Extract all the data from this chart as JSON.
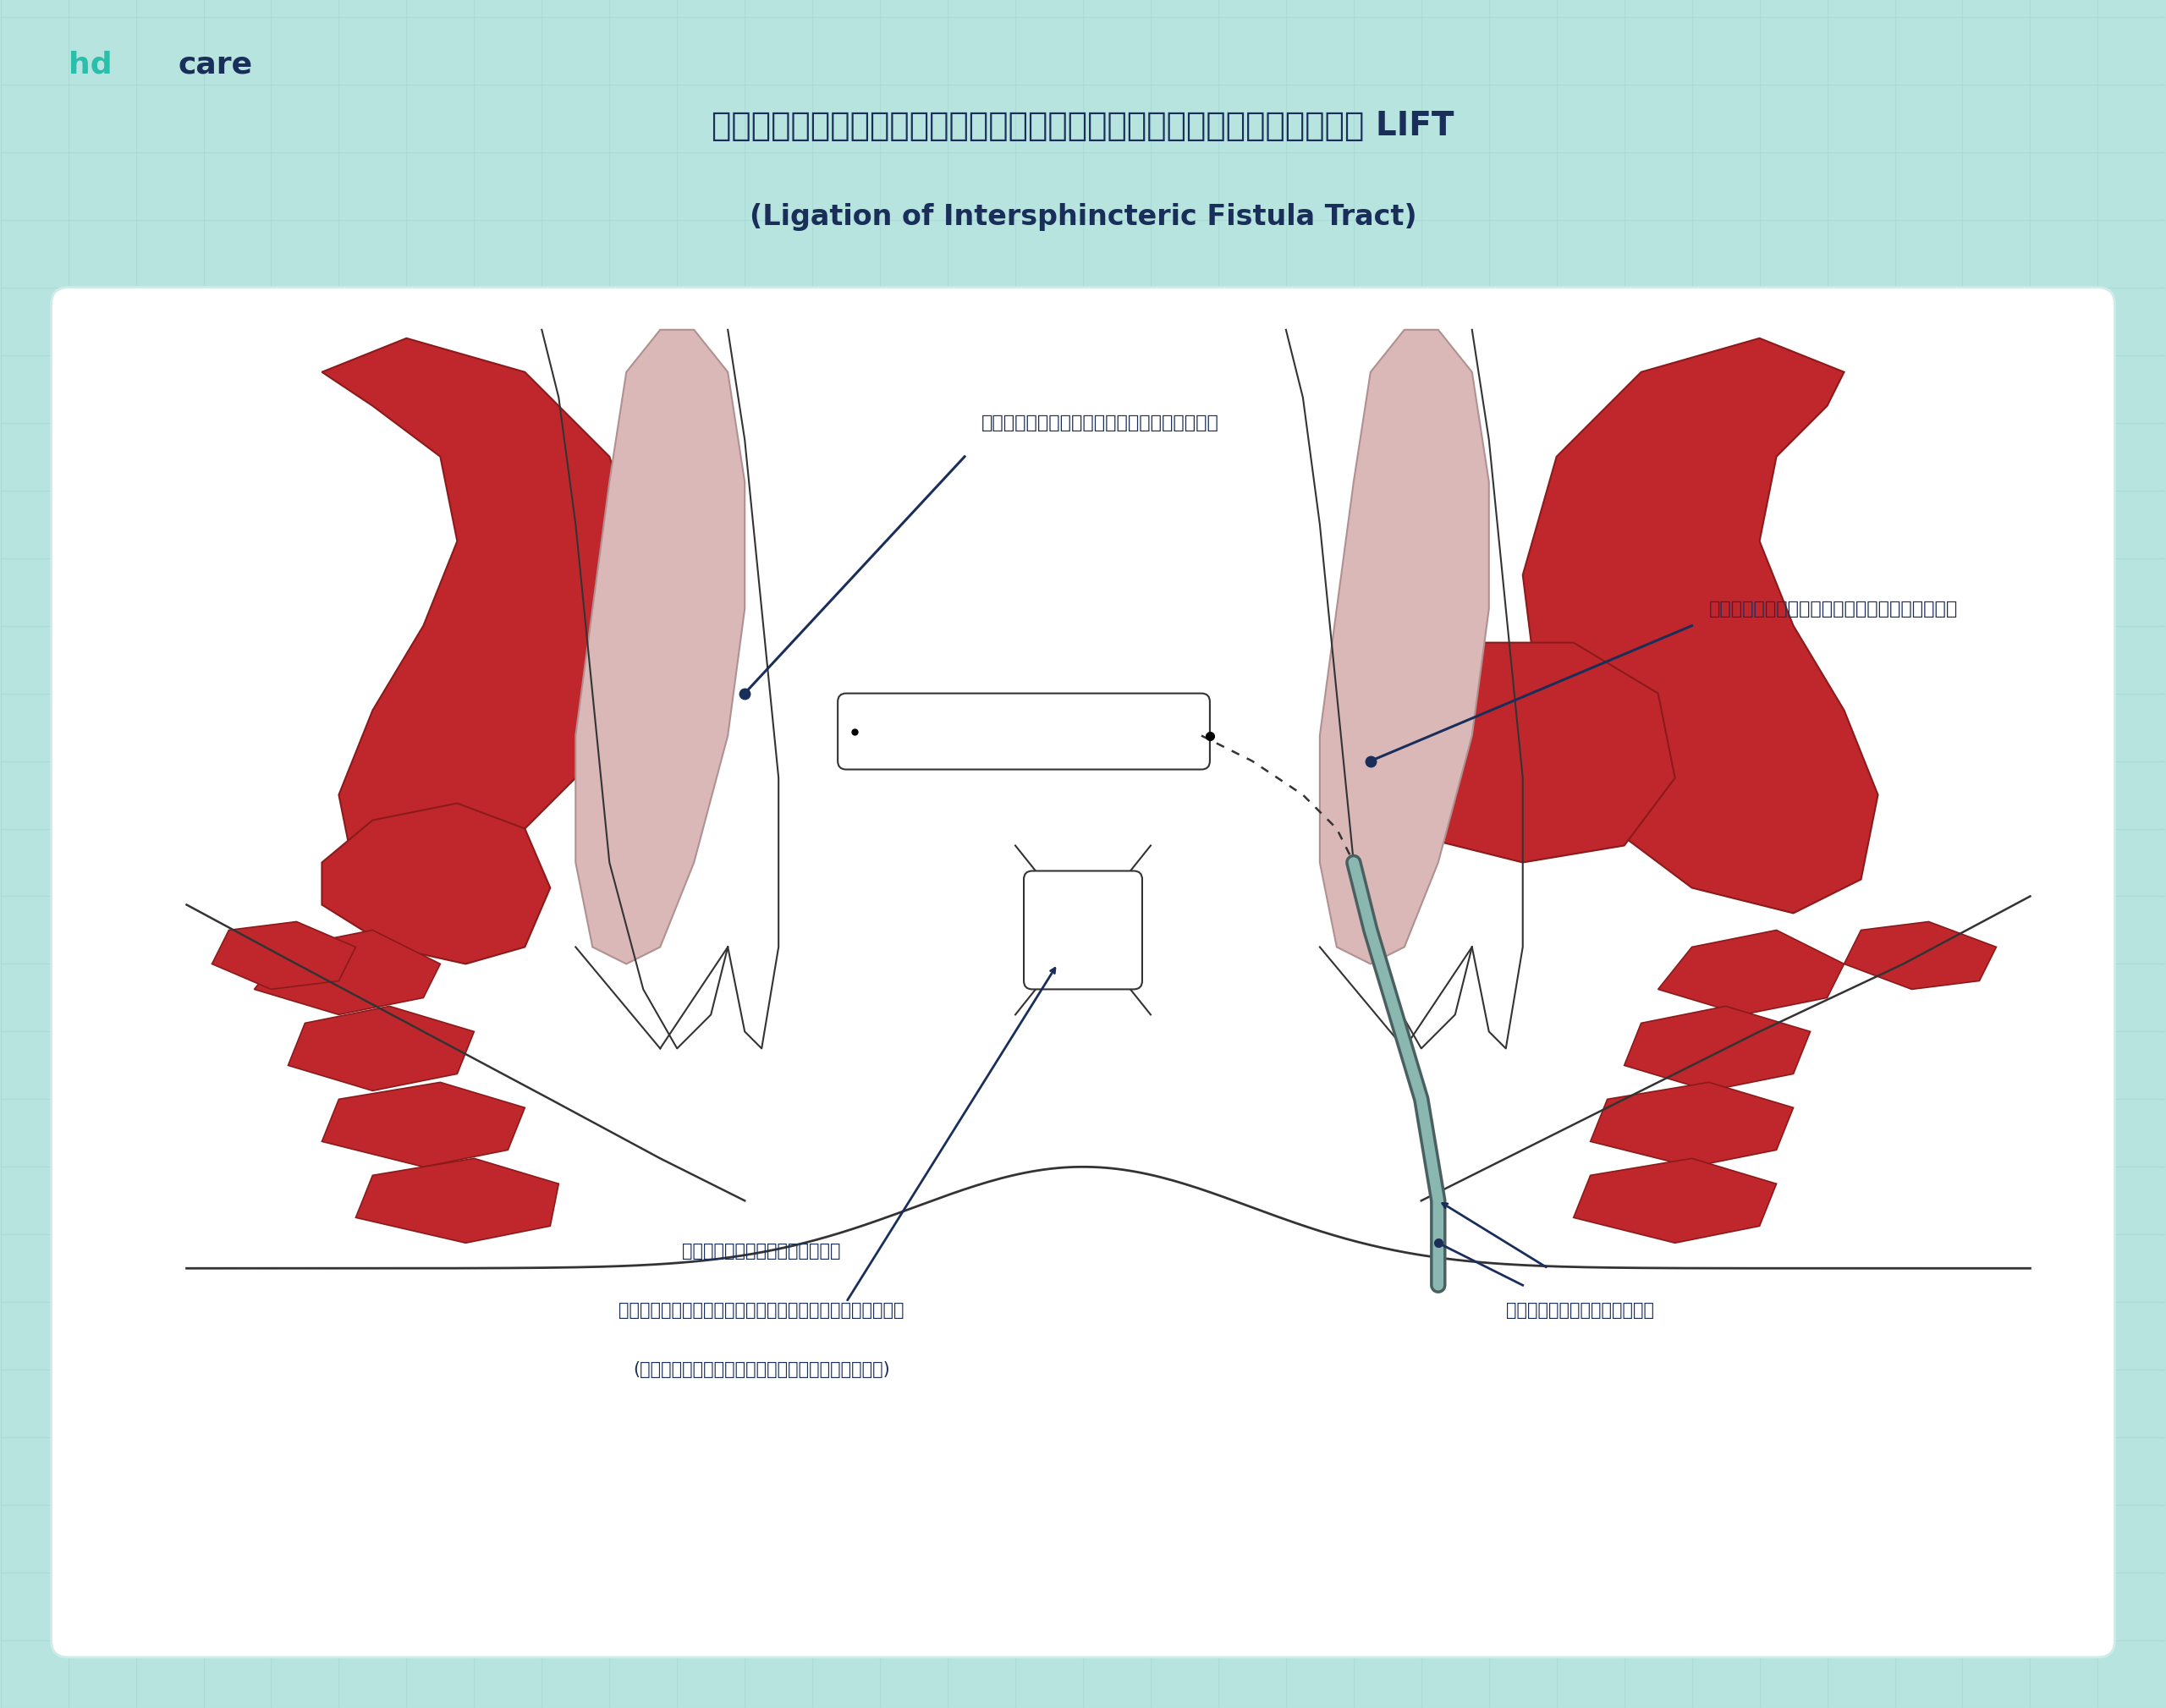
{
  "bg_color": "#b8e4e0",
  "panel_bg": "#ffffff",
  "panel_edge": "#d0ece8",
  "title_line1": "แบบจำลองการผ่าตัดผูกท่อฝีคัณฑสูตร LIFT",
  "title_line2": "(Ligation of Intersphincteric Fistula Tract)",
  "title_color": "#1a2e5a",
  "hd_color": "#2abfab",
  "care_color": "#1a2e5a",
  "label_inner": "กล้ามเนื้อหูรูดชั้นใน",
  "label_outer": "กล้ามเนื้อหูรูดชั้นนอก",
  "label_space_1": "ช่องว่างระหว่าง",
  "label_space_2": "กล้ามเนื้อหูรูดชั้นในและนอก",
  "label_space_3": "(บริเวณที่เกิดฝีคัณฑสูตร)",
  "label_fistula": "โพรงฝีคัณฑสูตร",
  "red_muscle": "#c0272d",
  "pink_canal": "#c89898",
  "pink_light": "#dab8b8",
  "dark_navy": "#1a2e5a",
  "grid_color": "#9ed4d0",
  "line_color": "#333333",
  "tube_outer": "#4a6060",
  "tube_inner": "#8ab8b0"
}
